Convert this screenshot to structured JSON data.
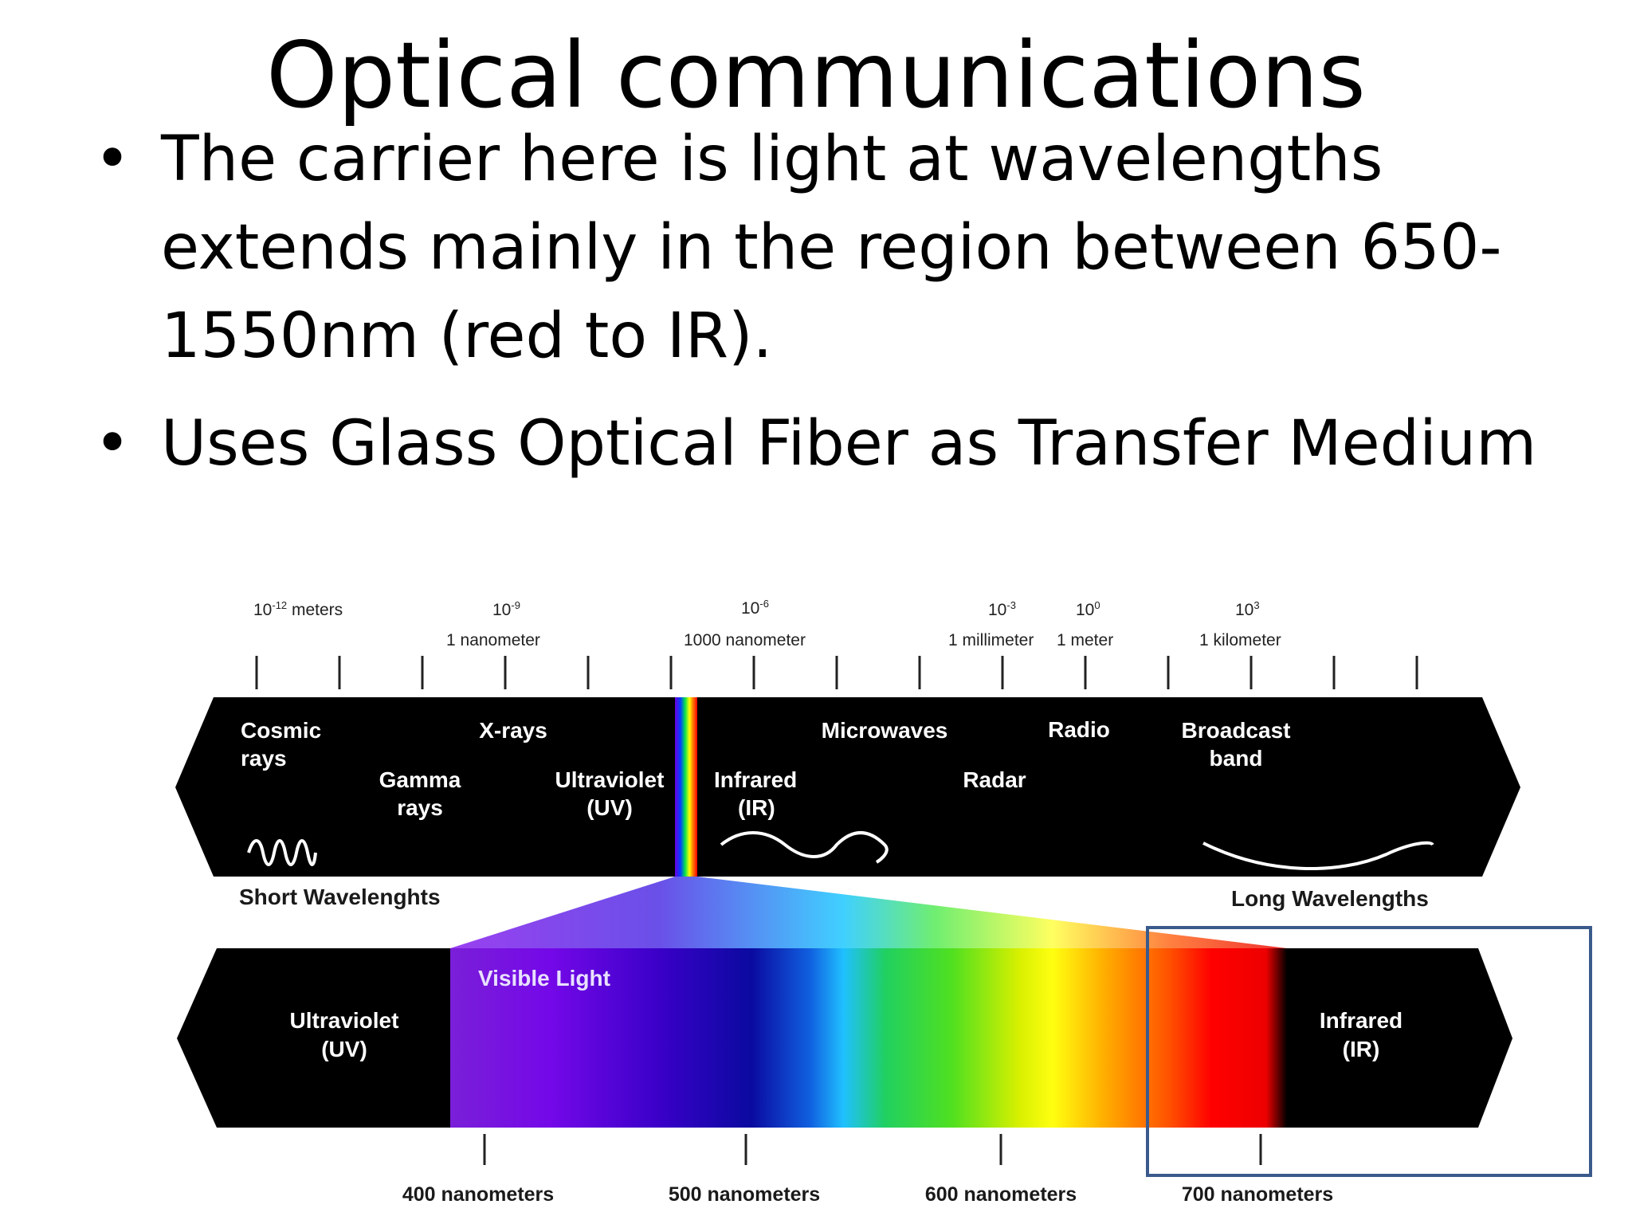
{
  "slide": {
    "title": "Optical communications",
    "bullets": [
      {
        "marker": "•",
        "text": "The carrier here is light at wavelengths extends mainly in the region between 650-1550nm (red to IR)."
      },
      {
        "marker": "•",
        "text": "Uses Glass Optical Fiber as Transfer Medium"
      }
    ]
  },
  "diagram": {
    "scale_labels": [
      {
        "base": "10",
        "exp": "-12",
        "unit": " meters",
        "name": ""
      },
      {
        "base": "10",
        "exp": "-9",
        "unit": "",
        "name": "1 nanometer"
      },
      {
        "base": "10",
        "exp": "-6",
        "unit": "",
        "name": "1000 nanometer"
      },
      {
        "base": "10",
        "exp": "-3",
        "unit": "",
        "name": "1 millimeter"
      },
      {
        "base": "10",
        "exp": "0",
        "unit": "",
        "name": "1 meter"
      },
      {
        "base": "10",
        "exp": "3",
        "unit": "",
        "name": "1 kilometer"
      }
    ],
    "top_band": {
      "cosmic": [
        "Cosmic",
        "rays"
      ],
      "gamma": [
        "Gamma",
        "rays"
      ],
      "xrays": "X-rays",
      "uv": [
        "Ultraviolet",
        "(UV)"
      ],
      "ir": [
        "Infrared",
        "(IR)"
      ],
      "microwaves": "Microwaves",
      "radar": "Radar",
      "radio": "Radio",
      "broadcast": [
        "Broadcast",
        "band"
      ]
    },
    "short_label": "Short Wavelenghts",
    "long_label": "Long Wavelengths",
    "bottom_band": {
      "uv": [
        "Ultraviolet",
        "(UV)"
      ],
      "visible": "Visible Light",
      "ir": [
        "Infrared",
        "(IR)"
      ]
    },
    "nm_labels": [
      "400 nanometers",
      "500 nanometers",
      "600 nanometers",
      "700 nanometers"
    ],
    "highlight_color": "#3a5a8c"
  }
}
